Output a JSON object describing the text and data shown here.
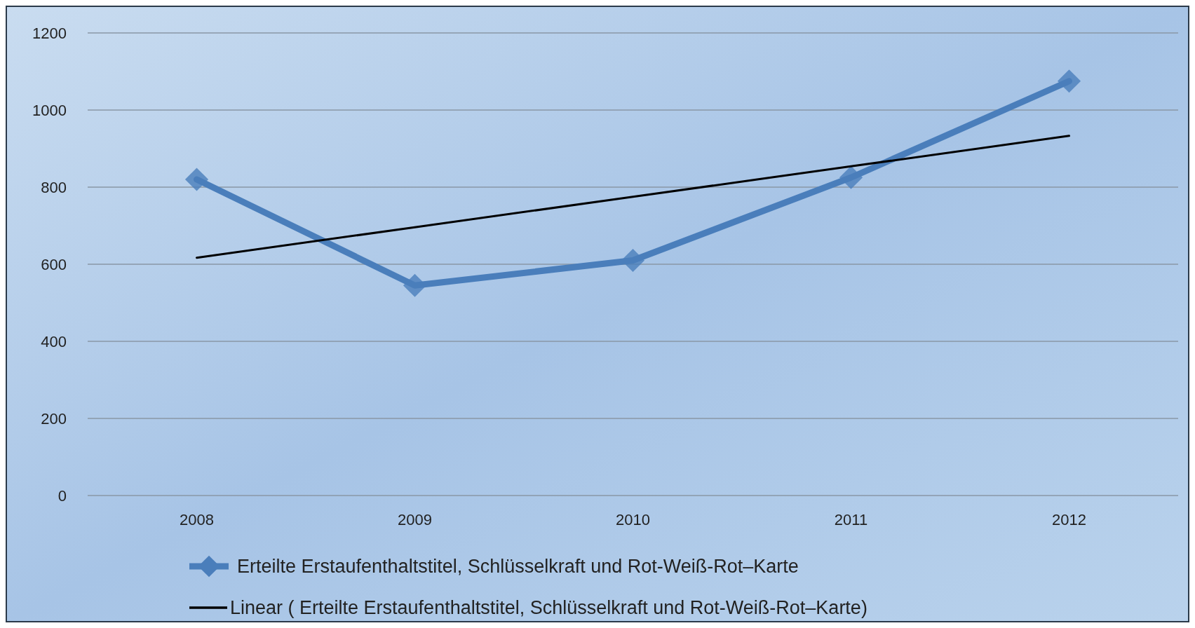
{
  "chart_data": {
    "type": "line",
    "categories": [
      "2008",
      "2009",
      "2010",
      "2011",
      "2012"
    ],
    "series": [
      {
        "name": "Erteilte Erstaufenthaltstitel, Schlüsselkraft und Rot-Weiß-Rot–Karte",
        "color": "#4a7ebb",
        "values": [
          820,
          545,
          610,
          825,
          1075
        ],
        "marker": "diamond"
      },
      {
        "name": "Linear ( Erteilte Erstaufenthaltstitel, Schlüsselkraft und Rot-Weiß-Rot–Karte)",
        "type": "line",
        "color": "#000000",
        "values": [
          617,
          696,
          775,
          854,
          933
        ],
        "marker": "none"
      }
    ],
    "ylim": [
      0,
      1200
    ],
    "yticks": [
      0,
      200,
      400,
      600,
      800,
      1000,
      1200
    ],
    "grid": "y",
    "legend": "bottom"
  }
}
